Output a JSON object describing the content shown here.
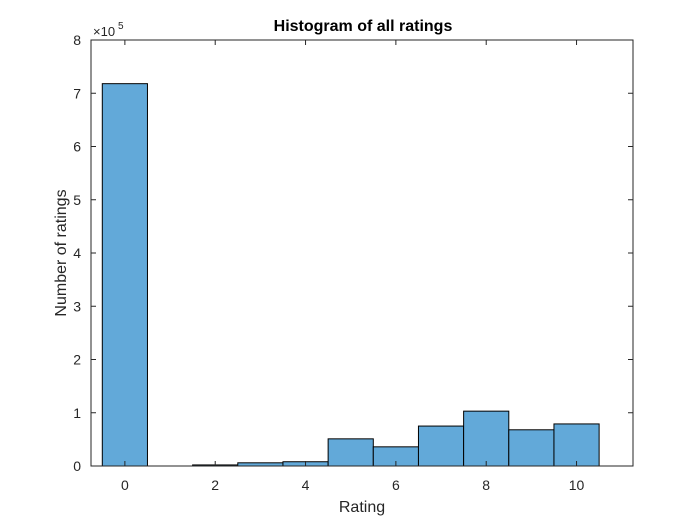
{
  "chart_data": {
    "type": "bar",
    "title": "Histogram of all ratings",
    "xlabel": "Rating",
    "ylabel": "Number of ratings",
    "y_exponent_multiplier": "×10",
    "y_exponent_power": "5",
    "x_range": [
      -0.75,
      11.25
    ],
    "ylim": [
      0,
      8
    ],
    "x_ticks": [
      0,
      2,
      4,
      6,
      8,
      10
    ],
    "x_tick_labels": [
      "0",
      "2",
      "4",
      "6",
      "8",
      "10"
    ],
    "y_ticks": [
      0,
      1,
      2,
      3,
      4,
      5,
      6,
      7,
      8
    ],
    "y_tick_labels": [
      "0",
      "1",
      "2",
      "3",
      "4",
      "5",
      "6",
      "7",
      "8"
    ],
    "bin_edges": [
      -0.5,
      0.5,
      1.5,
      2.5,
      3.5,
      4.5,
      5.5,
      6.5,
      7.5,
      8.5,
      9.5,
      10.5
    ],
    "values": [
      7.18,
      0.0,
      0.02,
      0.06,
      0.08,
      0.51,
      0.36,
      0.75,
      1.03,
      0.68,
      0.79
    ],
    "value_scale": 100000,
    "bar_color": "#62a9d9",
    "edge_color": "#000000",
    "grid": false,
    "box": true
  }
}
